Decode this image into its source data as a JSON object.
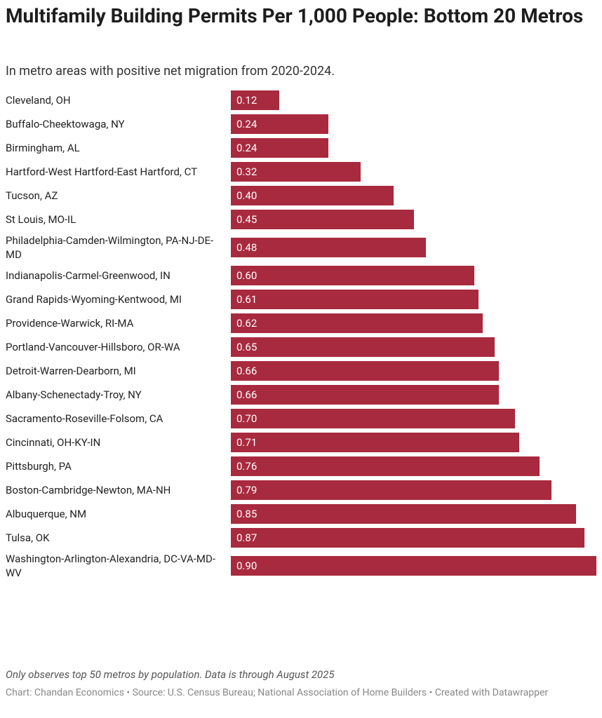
{
  "chart_data": {
    "type": "bar",
    "title": "Multifamily Building Permits Per 1,000 People: Bottom 20 Metros",
    "subtitle": "In metro areas with positive net migration from 2020-2024.",
    "categories": [
      "Cleveland, OH",
      "Buffalo-Cheektowaga, NY",
      "Birmingham, AL",
      "Hartford-West Hartford-East Hartford, CT",
      "Tucson, AZ",
      "St Louis, MO-IL",
      "Philadelphia-Camden-Wilmington, PA-NJ-DE-MD",
      "Indianapolis-Carmel-Greenwood, IN",
      "Grand Rapids-Wyoming-Kentwood, MI",
      "Providence-Warwick, RI-MA",
      "Portland-Vancouver-Hillsboro, OR-WA",
      "Detroit-Warren-Dearborn, MI",
      "Albany-Schenectady-Troy, NY",
      "Sacramento-Roseville-Folsom, CA",
      "Cincinnati, OH-KY-IN",
      "Pittsburgh, PA",
      "Boston-Cambridge-Newton, MA-NH",
      "Albuquerque, NM",
      "Tulsa, OK",
      "Washington-Arlington-Alexandria, DC-VA-MD-WV"
    ],
    "values": [
      0.12,
      0.24,
      0.24,
      0.32,
      0.4,
      0.45,
      0.48,
      0.6,
      0.61,
      0.62,
      0.65,
      0.66,
      0.66,
      0.7,
      0.71,
      0.76,
      0.79,
      0.85,
      0.87,
      0.9
    ],
    "value_labels": [
      "0.12",
      "0.24",
      "0.24",
      "0.32",
      "0.40",
      "0.45",
      "0.48",
      "0.60",
      "0.61",
      "0.62",
      "0.65",
      "0.66",
      "0.66",
      "0.70",
      "0.71",
      "0.76",
      "0.79",
      "0.85",
      "0.87",
      "0.90"
    ],
    "color": "#a82a3e",
    "note": "Only observes top 50 metros by population. Data is through August 2025",
    "source": "Chart: Chandan Economics • Source: U.S. Census Bureau; National Association of Home Builders • Created with Datawrapper"
  }
}
